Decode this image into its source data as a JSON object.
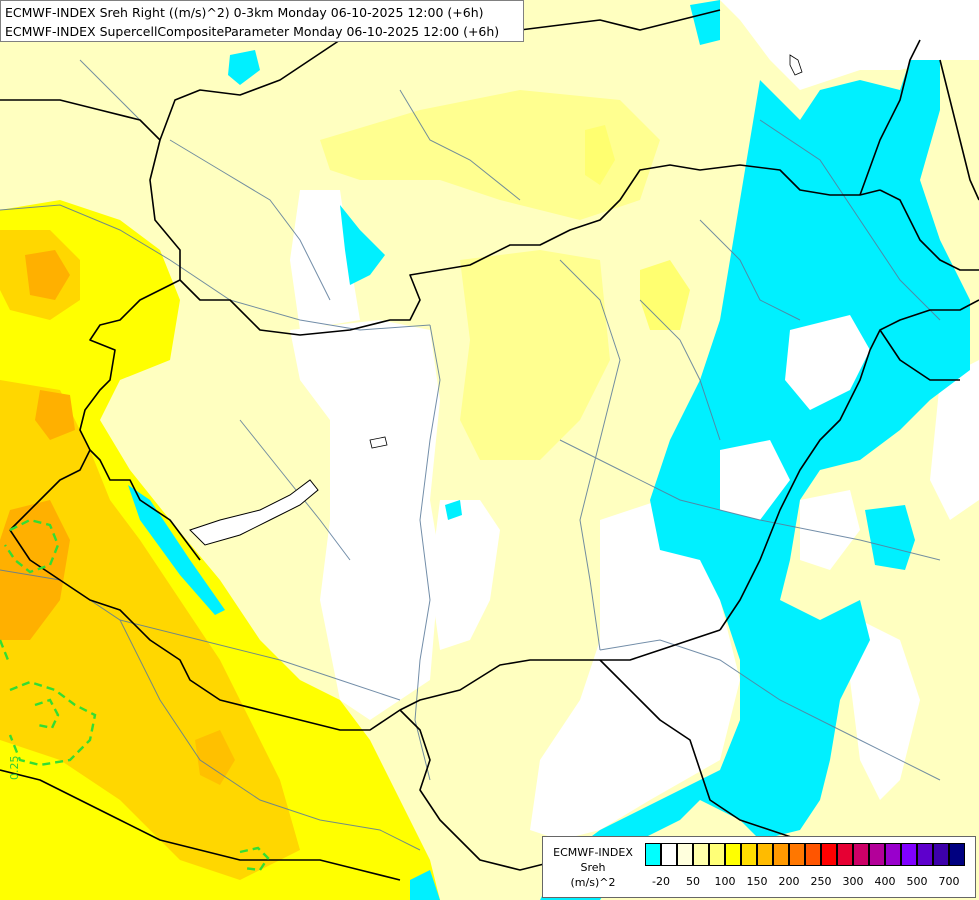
{
  "title": {
    "line1": "ECMWF-INDEX Sreh Right ((m/s)^2) 0-3km Monday 06-10-2025 12:00 (+6h)",
    "line2": "ECMWF-INDEX SupercellCompositeParameter Monday 06-10-2025 12:00 (+6h)"
  },
  "contour_label": "0.25",
  "legend": {
    "line1": "ECMWF-INDEX",
    "line2": "Sreh",
    "line3": "(m/s)^2",
    "swatch_colors": [
      "#00ffff",
      "#ffffff",
      "#ffffdd",
      "#ffffaa",
      "#ffff77",
      "#ffff00",
      "#ffdd00",
      "#ffbb00",
      "#ff9900",
      "#ff7700",
      "#ff5500",
      "#ff0000",
      "#e60033",
      "#cc0066",
      "#b30099",
      "#9900cc",
      "#8000ff",
      "#5e00cc",
      "#3d00aa",
      "#000080"
    ],
    "tick_labels": [
      "-20",
      "50",
      "100",
      "150",
      "200",
      "250",
      "300",
      "400",
      "500",
      "700"
    ]
  },
  "colors": {
    "cyan": "#00f0ff",
    "pale_yellow": "#ffffc0",
    "light_yellow": "#ffff90",
    "yellow": "#ffff00",
    "gold": "#ffd700",
    "orange": "#ffb000",
    "scp_contour": "#33dd33"
  }
}
